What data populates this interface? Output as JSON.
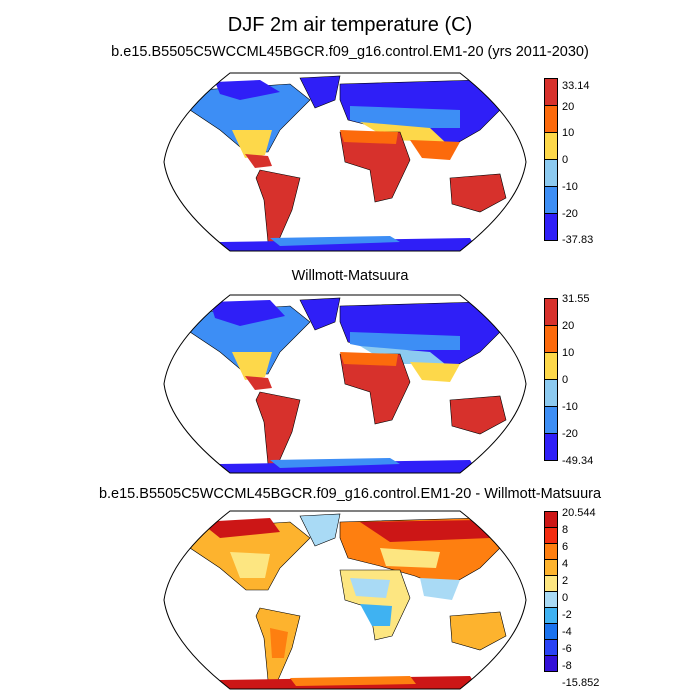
{
  "title": "DJF 2m air temperature (C)",
  "panels": [
    {
      "id": "model",
      "subtitle": "b.e15.B5505C5WCCML45BGCR.f09_g16.control.EM1-20 (yrs 2011-2030)",
      "colorbar_labels": [
        "33.14",
        "20",
        "10",
        "0",
        "-10",
        "-20",
        "-37.83"
      ],
      "colorbar_colors": [
        "#d7312c",
        "#fc6a0c",
        "#fdd84a",
        "#8ccaf0",
        "#3d8ef5",
        "#2f1ff7"
      ]
    },
    {
      "id": "obs",
      "subtitle": "Willmott-Matsuura",
      "colorbar_labels": [
        "31.55",
        "20",
        "10",
        "0",
        "-10",
        "-20",
        "-49.34"
      ],
      "colorbar_colors": [
        "#d7312c",
        "#fc6a0c",
        "#fdd84a",
        "#8ccaf0",
        "#3d8ef5",
        "#2f1ff7"
      ]
    },
    {
      "id": "diff",
      "subtitle": "b.e15.B5505C5WCCML45BGCR.f09_g16.control.EM1-20 - Willmott-Matsuura",
      "colorbar_labels": [
        "20.544",
        "8",
        "6",
        "4",
        "2",
        "0",
        "-2",
        "-4",
        "-6",
        "-8",
        "-15.852"
      ],
      "colorbar_colors": [
        "#cc1616",
        "#f32c10",
        "#fe7f10",
        "#fdb32e",
        "#fde681",
        "#a9daf5",
        "#3fb2f2",
        "#1a72ee",
        "#2a43f5",
        "#3310d8"
      ]
    }
  ],
  "map_projection": "Robinson",
  "map_view": "global"
}
